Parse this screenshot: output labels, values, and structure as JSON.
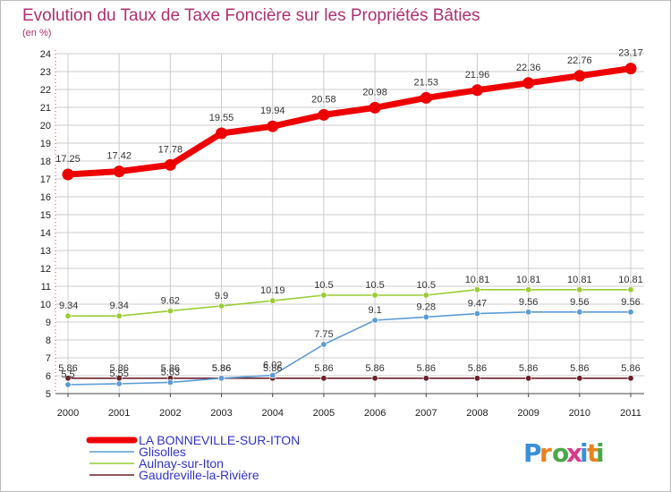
{
  "title": "Evolution du Taux de Taxe Foncière sur les Propriétés Bâties",
  "unit_label": "(en %)",
  "logo": {
    "text": "Proxiti"
  },
  "colors": {
    "title": "#b0306e",
    "legend_text": "#3333cc",
    "grid": "#cccccc",
    "axis_dots": "#dd4444"
  },
  "chart_data": {
    "type": "line",
    "title": "Evolution du Taux de Taxe Foncière sur les Propriétés Bâties",
    "ylabel": "(en %)",
    "xlabel": "",
    "x": [
      "2000",
      "2001",
      "2002",
      "2003",
      "2004",
      "2005",
      "2006",
      "2007",
      "2008",
      "2009",
      "2010",
      "2011"
    ],
    "ylim": [
      5,
      24
    ],
    "yticks": [
      5,
      6,
      7,
      8,
      9,
      10,
      11,
      12,
      13,
      14,
      15,
      16,
      17,
      18,
      19,
      20,
      21,
      22,
      23,
      24
    ],
    "grid": true,
    "legend_position": "bottom-left",
    "series": [
      {
        "name": "LA BONNEVILLE-SUR-ITON",
        "color": "#ee0000",
        "values": [
          17.25,
          17.42,
          17.78,
          19.55,
          19.94,
          20.58,
          20.98,
          21.53,
          21.96,
          22.36,
          22.76,
          23.17
        ],
        "labels": [
          "17.25",
          "17.42",
          "17.78",
          "19.55",
          "19.94",
          "20.58",
          "20.98",
          "21.53",
          "21.96",
          "22.36",
          "22.76",
          "23.17"
        ]
      },
      {
        "name": "Glisolles",
        "color": "#5b9bd5",
        "values": [
          5.5,
          5.55,
          5.63,
          5.86,
          6.02,
          7.75,
          9.1,
          9.28,
          9.47,
          9.56,
          9.56,
          9.56
        ],
        "labels": [
          "5.5",
          "5.55",
          "5.63",
          "5.86",
          "6.02",
          "7.75",
          "9.1",
          "9.28",
          "9.47",
          "9.56",
          "9.56",
          "9.56"
        ]
      },
      {
        "name": "Aulnay-sur-Iton",
        "color": "#99cc33",
        "values": [
          9.34,
          9.34,
          9.62,
          9.9,
          10.19,
          10.5,
          10.5,
          10.5,
          10.81,
          10.81,
          10.81,
          10.81
        ],
        "labels": [
          "9.34",
          "9.34",
          "9.62",
          "9.9",
          "10.19",
          "10.5",
          "10.5",
          "10.5",
          "10.81",
          "10.81",
          "10.81",
          "10.81"
        ]
      },
      {
        "name": "Gaudreville-la-Rivière",
        "color": "#6b1f2a",
        "values": [
          5.86,
          5.86,
          5.86,
          5.86,
          5.86,
          5.86,
          5.86,
          5.86,
          5.86,
          5.86,
          5.86,
          5.86
        ],
        "labels": [
          "5.86",
          "5.86",
          "5.86",
          "5.86",
          "5.86",
          "5.86",
          "5.86",
          "5.86",
          "5.86",
          "5.86",
          "5.86",
          "5.86"
        ]
      }
    ]
  }
}
